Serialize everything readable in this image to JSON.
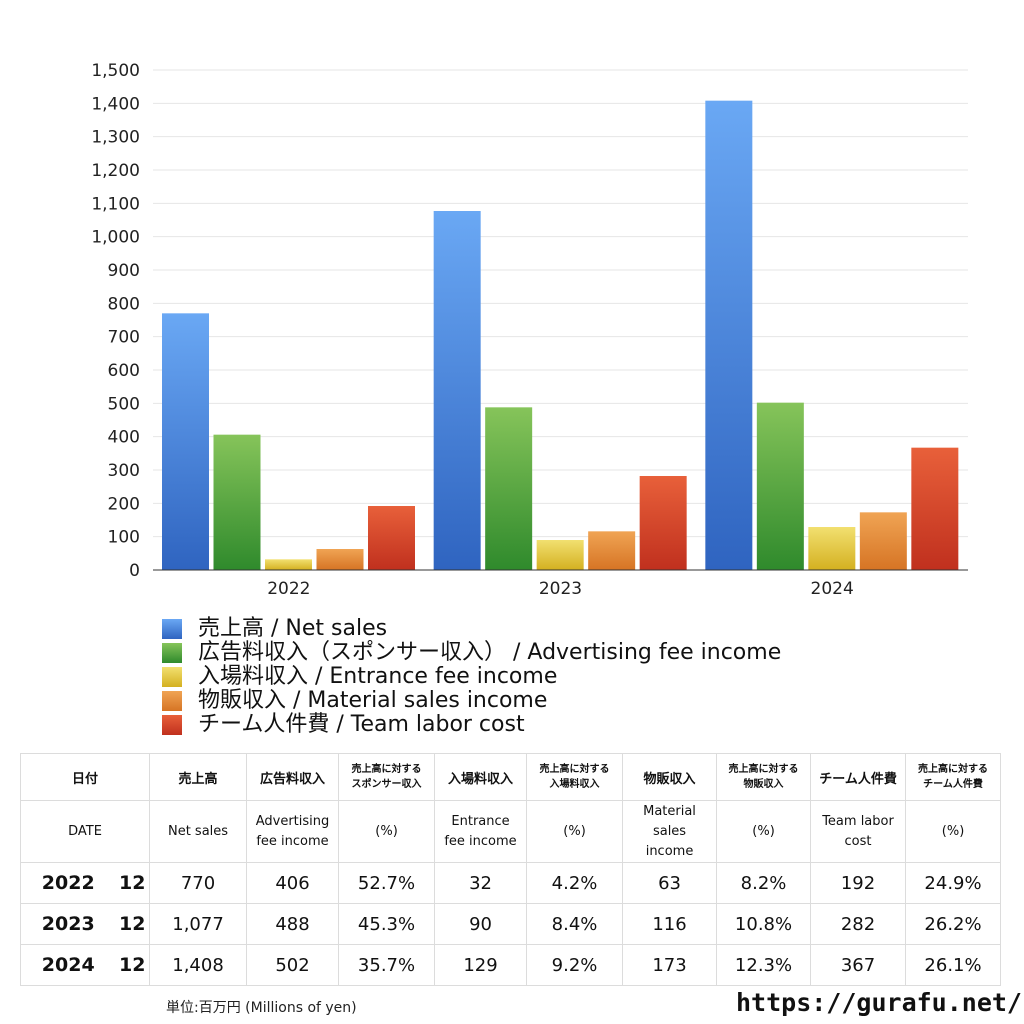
{
  "chart_data": {
    "type": "bar",
    "categories": [
      "2022",
      "2023",
      "2024"
    ],
    "series": [
      {
        "name": "売上高 / Net sales",
        "values": [
          770,
          1077,
          1408
        ],
        "color": "#4a8ee8"
      },
      {
        "name": "広告料収入（スポンサー収入） / Advertising fee income",
        "values": [
          406,
          488,
          502
        ],
        "color": "#4caa3c"
      },
      {
        "name": "入場料収入 / Entrance fee income",
        "values": [
          32,
          90,
          129
        ],
        "color": "#e8cc3c"
      },
      {
        "name": "物販収入 / Material sales income",
        "values": [
          63,
          116,
          173
        ],
        "color": "#e58a34"
      },
      {
        "name": "チーム人件費 / Team labor cost",
        "values": [
          192,
          282,
          367
        ],
        "color": "#d8442a"
      }
    ],
    "ylim": [
      0,
      1500
    ],
    "yticks": [
      "0",
      "100",
      "200",
      "300",
      "400",
      "500",
      "600",
      "700",
      "800",
      "900",
      "1,000",
      "1,100",
      "1,200",
      "1,300",
      "1,400",
      "1,500"
    ],
    "grid": true,
    "legend": "bottom"
  },
  "table": {
    "header_jp": {
      "date": "日付",
      "net_sales": "売上高",
      "advertising": "広告料収入",
      "advertising_pct": [
        "売上高に対する",
        "スポンサー収入"
      ],
      "entrance": "入場料収入",
      "entrance_pct": [
        "売上高に対する",
        "入場料収入"
      ],
      "material": "物販収入",
      "material_pct": [
        "売上高に対する",
        "物販収入"
      ],
      "labor": "チーム人件費",
      "labor_pct": [
        "売上高に対する",
        "チーム人件費"
      ]
    },
    "header_en": {
      "date": "DATE",
      "net_sales": "Net sales",
      "advertising": [
        "Advertising",
        "fee income"
      ],
      "advertising_pct": "(%)",
      "entrance": [
        "Entrance",
        "fee income"
      ],
      "entrance_pct": "(%)",
      "material": [
        "Material",
        "sales",
        "income"
      ],
      "material_pct": "(%)",
      "labor": [
        "Team labor",
        "cost"
      ],
      "labor_pct": "(%)"
    },
    "rows": [
      {
        "year": "2022",
        "month": "12",
        "net_sales": "770",
        "advertising": "406",
        "advertising_pct": "52.7%",
        "entrance": "32",
        "entrance_pct": "4.2%",
        "material": "63",
        "material_pct": "8.2%",
        "labor": "192",
        "labor_pct": "24.9%"
      },
      {
        "year": "2023",
        "month": "12",
        "net_sales": "1,077",
        "advertising": "488",
        "advertising_pct": "45.3%",
        "entrance": "90",
        "entrance_pct": "8.4%",
        "material": "116",
        "material_pct": "10.8%",
        "labor": "282",
        "labor_pct": "26.2%"
      },
      {
        "year": "2024",
        "month": "12",
        "net_sales": "1,408",
        "advertising": "502",
        "advertising_pct": "35.7%",
        "entrance": "129",
        "entrance_pct": "9.2%",
        "material": "173",
        "material_pct": "12.3%",
        "labor": "367",
        "labor_pct": "26.1%"
      }
    ]
  },
  "footer": {
    "unit": "単位:百万円 (Millions of yen)",
    "url": "https://gurafu.net/"
  }
}
